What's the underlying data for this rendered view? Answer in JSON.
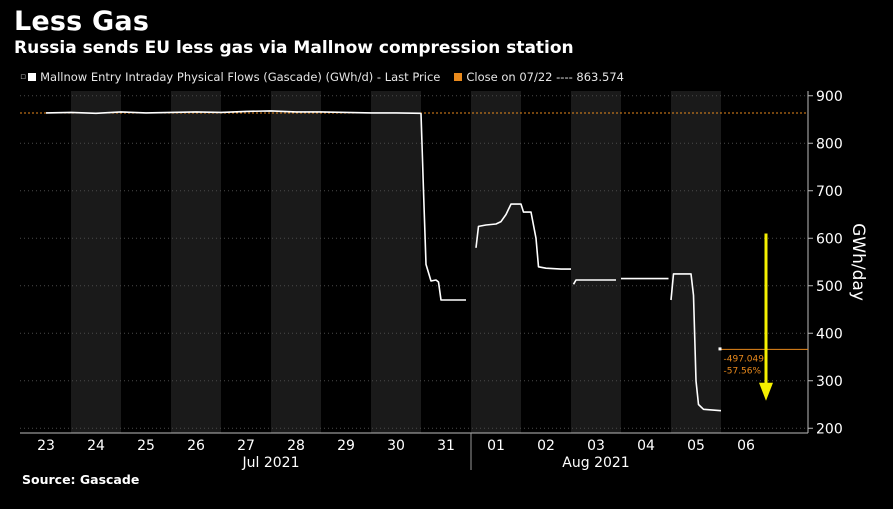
{
  "header": {
    "title": "Less Gas",
    "subtitle": "Russia sends EU less gas via Mallnow compression station"
  },
  "legend": {
    "series_label": "Mallnow Entry Intraday Physical Flows (Gascade) (GWh/d) - Last Price",
    "series_color": "#ffffff",
    "close_label": "Close on 07/22 ---- 863.574",
    "close_color": "#e8891c"
  },
  "footer": {
    "source": "Source: Gascade"
  },
  "chart_data": {
    "type": "line",
    "ylabel": "GWh/day",
    "ylim": [
      190,
      910
    ],
    "yticks": [
      200,
      300,
      400,
      500,
      600,
      700,
      800,
      900
    ],
    "grid": true,
    "days": [
      "23",
      "24",
      "25",
      "26",
      "27",
      "28",
      "29",
      "30",
      "31",
      "01",
      "02",
      "03",
      "04",
      "05",
      "06"
    ],
    "months": [
      {
        "label": "Jul 2021"
      },
      {
        "label": "Aug 2021"
      }
    ],
    "reference_line": {
      "label": "Close on 07/22",
      "value": 863.574,
      "color": "#e8891c"
    },
    "annotation": {
      "change": "-497.049",
      "change_pct": "-57.56%",
      "color": "#e8891c"
    },
    "series": [
      {
        "name": "Mallnow Entry Intraday Physical Flows (Gascade) (GWh/d)",
        "color": "#ffffff",
        "segments": [
          [
            [
              23.0,
              864
            ],
            [
              23.5,
              865
            ],
            [
              24.0,
              863
            ],
            [
              24.5,
              866
            ],
            [
              25.0,
              864
            ],
            [
              25.5,
              865
            ],
            [
              26.0,
              866
            ],
            [
              26.5,
              865
            ],
            [
              27.0,
              867
            ],
            [
              27.5,
              868
            ],
            [
              28.0,
              866
            ],
            [
              28.5,
              866
            ],
            [
              29.0,
              865
            ],
            [
              29.5,
              864
            ],
            [
              30.0,
              864
            ],
            [
              30.5,
              863
            ]
          ],
          [
            [
              30.5,
              863
            ],
            [
              30.55,
              700
            ],
            [
              30.6,
              545
            ],
            [
              30.7,
              510
            ],
            [
              30.8,
              512
            ],
            [
              30.85,
              508
            ],
            [
              30.9,
              470
            ],
            [
              31.0,
              470
            ],
            [
              31.4,
              470
            ]
          ],
          [
            [
              31.6,
              580
            ],
            [
              31.65,
              625
            ],
            [
              31.8,
              628
            ],
            [
              32.0,
              630
            ],
            [
              32.1,
              635
            ],
            [
              32.2,
              650
            ],
            [
              32.3,
              672
            ],
            [
              32.5,
              672
            ],
            [
              32.55,
              655
            ],
            [
              32.7,
              655
            ],
            [
              32.8,
              600
            ],
            [
              32.85,
              540
            ],
            [
              33.0,
              537
            ],
            [
              33.3,
              535
            ],
            [
              33.5,
              535
            ]
          ],
          [
            [
              33.55,
              503
            ],
            [
              33.6,
              512
            ],
            [
              34.0,
              512
            ],
            [
              34.4,
              512
            ]
          ],
          [
            [
              34.5,
              515
            ],
            [
              35.0,
              515
            ],
            [
              35.45,
              515
            ]
          ],
          [
            [
              35.5,
              470
            ],
            [
              35.55,
              525
            ],
            [
              35.9,
              525
            ],
            [
              35.95,
              480
            ],
            [
              36.0,
              300
            ],
            [
              36.05,
              250
            ],
            [
              36.15,
              240
            ],
            [
              36.5,
              237
            ]
          ]
        ]
      }
    ]
  }
}
